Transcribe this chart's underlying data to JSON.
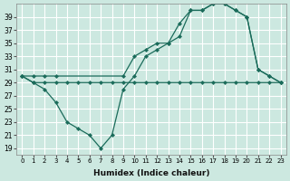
{
  "xlabel": "Humidex (Indice chaleur)",
  "bg_color": "#cce8e0",
  "grid_color": "#ffffff",
  "line_color": "#1a6b5a",
  "xlim": [
    -0.5,
    23.5
  ],
  "ylim": [
    18,
    41
  ],
  "yticks": [
    19,
    21,
    23,
    25,
    27,
    29,
    31,
    33,
    35,
    37,
    39
  ],
  "xticks": [
    0,
    1,
    2,
    3,
    4,
    5,
    6,
    7,
    8,
    9,
    10,
    11,
    12,
    13,
    14,
    15,
    16,
    17,
    18,
    19,
    20,
    21,
    22,
    23
  ],
  "series1_x": [
    0,
    1,
    2,
    3,
    4,
    5,
    6,
    7,
    8,
    9,
    10,
    11,
    12,
    13,
    14,
    15,
    16,
    17,
    18,
    19,
    20,
    21,
    22,
    23
  ],
  "series1_y": [
    30,
    29,
    28,
    26,
    23,
    22,
    21,
    19,
    21,
    28,
    30,
    33,
    34,
    35,
    38,
    40,
    40,
    41,
    41,
    40,
    39,
    31,
    30,
    29
  ],
  "series2_x": [
    0,
    1,
    2,
    3,
    4,
    5,
    6,
    7,
    8,
    9,
    10,
    11,
    12,
    13,
    14,
    15,
    16,
    17,
    18,
    19,
    20,
    21,
    22,
    23
  ],
  "series2_y": [
    30,
    29,
    29,
    29,
    29,
    29,
    29,
    29,
    29,
    29,
    29,
    29,
    29,
    29,
    29,
    29,
    29,
    29,
    29,
    29,
    29,
    29,
    29,
    29
  ],
  "series3_x": [
    0,
    1,
    2,
    3,
    9,
    10,
    11,
    12,
    13,
    14,
    15,
    16,
    17,
    18,
    19,
    20,
    21,
    22,
    23
  ],
  "series3_y": [
    30,
    30,
    30,
    30,
    30,
    33,
    34,
    35,
    35,
    36,
    40,
    40,
    41,
    41,
    40,
    39,
    31,
    30,
    29
  ]
}
